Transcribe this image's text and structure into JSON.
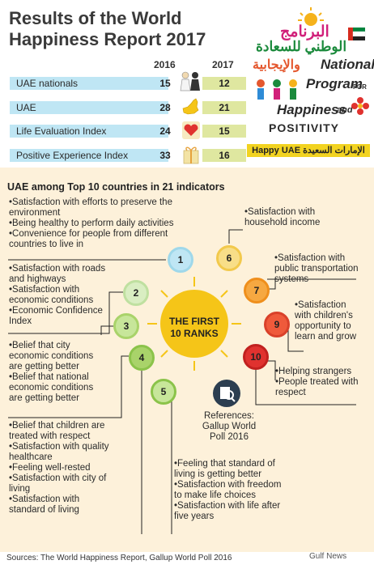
{
  "title_line1": "Results of the World",
  "title_line2": "Happiness Report 2017",
  "years": {
    "y2016": "2016",
    "y2017": "2017"
  },
  "rows": [
    {
      "label": "UAE nationals",
      "v2016": "15",
      "v2017": "12",
      "icon": "emirati-people-icon"
    },
    {
      "label": "UAE",
      "v2016": "28",
      "v2017": "21",
      "icon": "uae-map-icon"
    },
    {
      "label": "Life Evaluation Index",
      "v2016": "24",
      "v2017": "15",
      "icon": "heart-icon"
    },
    {
      "label": "Positive Experience Index",
      "v2016": "33",
      "v2017": "16",
      "icon": "gift-icon"
    }
  ],
  "logo": {
    "arabic_1": "البرنامج",
    "arabic_2": "الوطني للسعادة",
    "arabic_3": "والإيجابية",
    "en_1": "National",
    "en_2": "Program",
    "en_for": "FOR",
    "en_3": "Happiness",
    "en_and": "and",
    "en_4": "POSITIVITY",
    "happy_uae": "Happy UAE الإمارات السعيدة"
  },
  "section_title": "UAE among Top 10 countries in 21 indicators",
  "center_label_1": "THE FIRST",
  "center_label_2": "10 RANKS",
  "ranks": [
    "1",
    "2",
    "3",
    "4",
    "5",
    "6",
    "7",
    "9",
    "10"
  ],
  "groups": {
    "g1": [
      "•Satisfaction with efforts to preserve the",
      "environment",
      "•Being healthy to perform daily activities",
      "•Convenience for people from different",
      "countries to live in"
    ],
    "g2": [
      "•Satisfaction with roads",
      "and highways",
      "•Satisfaction with",
      "economic conditions",
      "•Economic Confidence",
      "Index"
    ],
    "g3": [
      "•Belief that city",
      "economic conditions",
      "are getting better",
      "•Belief that national",
      "economic conditions",
      "are getting better"
    ],
    "g4": [
      "•Belief that children are",
      "treated with respect",
      "•Satisfaction with quality",
      "healthcare",
      "•Feeling well-rested",
      "•Satisfaction with city of",
      "living",
      "•Satisfaction with",
      "standard of living"
    ],
    "g5": [
      "•Feeling that standard of",
      "living is getting better",
      "•Satisfaction with freedom",
      "to make life choices",
      "•Satisfaction with life after",
      "five years"
    ],
    "g6": [
      "•Satisfaction with",
      "household income"
    ],
    "g7": [
      "•Satisfaction with",
      "public transportation",
      "systems"
    ],
    "g9": [
      "•Satisfaction",
      "with children's",
      "opportunity to",
      "learn and grow"
    ],
    "g10": [
      "•Helping strangers",
      "•People treated with",
      "respect"
    ]
  },
  "references": [
    "References:",
    "Gallup World",
    "Poll 2016"
  ],
  "footer": "Sources: The World Happiness Report, Gallup World Poll 2016",
  "watermark": "Gulf News",
  "colors": {
    "blue_bar": "#bfe6f4",
    "green_bar": "#dfe7a0",
    "cream": "#fdf1da",
    "sun": "#f5c518",
    "yellow": "#f2d321"
  }
}
